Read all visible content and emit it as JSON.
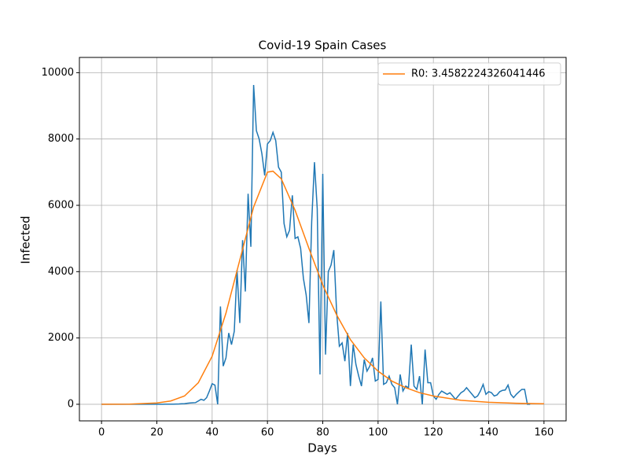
{
  "chart_data": {
    "type": "line",
    "title": "Covid-19 Spain Cases",
    "x_label": "Days",
    "y_label": "Infected",
    "xlim": [
      -8,
      168
    ],
    "ylim": [
      -500,
      10460
    ],
    "xticks": [
      0,
      20,
      40,
      60,
      80,
      100,
      120,
      140,
      160
    ],
    "yticks": [
      0,
      2000,
      4000,
      6000,
      8000,
      10000
    ],
    "grid": true,
    "legend": "upper right",
    "series": [
      {
        "color": "#1f77b4",
        "x": [
          0,
          1,
          2,
          3,
          4,
          5,
          6,
          7,
          8,
          9,
          10,
          11,
          12,
          13,
          14,
          15,
          16,
          17,
          18,
          19,
          20,
          21,
          22,
          23,
          24,
          25,
          26,
          27,
          28,
          29,
          30,
          31,
          32,
          33,
          34,
          35,
          36,
          37,
          38,
          39,
          40,
          41,
          42,
          43,
          44,
          45,
          46,
          47,
          48,
          49,
          50,
          51,
          52,
          53,
          54,
          55,
          56,
          57,
          58,
          59,
          60,
          61,
          62,
          63,
          64,
          65,
          66,
          67,
          68,
          69,
          70,
          71,
          72,
          73,
          74,
          75,
          76,
          77,
          78,
          79,
          80,
          81,
          82,
          83,
          84,
          85,
          86,
          87,
          88,
          89,
          90,
          91,
          92,
          93,
          94,
          95,
          96,
          97,
          98,
          99,
          100,
          101,
          102,
          103,
          104,
          105,
          106,
          107,
          108,
          109,
          110,
          111,
          112,
          113,
          114,
          115,
          116,
          117,
          118,
          119,
          120,
          121,
          122,
          123,
          124,
          125,
          126,
          127,
          128,
          129,
          130,
          131,
          132,
          133,
          134,
          135,
          136,
          137,
          138,
          139,
          140,
          141,
          142,
          143,
          144,
          145,
          146,
          147,
          148,
          149,
          150,
          151,
          152,
          153,
          154,
          155
        ],
        "values": [
          0,
          0,
          0,
          0,
          0,
          0,
          0,
          0,
          0,
          0,
          0,
          0,
          0,
          0,
          0,
          0,
          0,
          0,
          0,
          0,
          1,
          1,
          2,
          3,
          3,
          5,
          5,
          8,
          10,
          15,
          20,
          30,
          40,
          45,
          50,
          100,
          150,
          120,
          200,
          400,
          620,
          580,
          0,
          2950,
          1150,
          1400,
          2150,
          1800,
          2200,
          4050,
          2450,
          4950,
          3400,
          6350,
          4750,
          9630,
          8250,
          8000,
          7550,
          6900,
          7850,
          7950,
          8200,
          7950,
          7150,
          7000,
          5450,
          5050,
          5250,
          6300,
          5000,
          5050,
          4700,
          3800,
          3300,
          2450,
          5500,
          7300,
          5900,
          900,
          6950,
          1500,
          4000,
          4200,
          4650,
          2800,
          1750,
          1850,
          1300,
          2150,
          550,
          1800,
          1200,
          850,
          550,
          1350,
          1000,
          1150,
          1400,
          700,
          750,
          3100,
          600,
          650,
          850,
          600,
          500,
          0,
          900,
          400,
          550,
          500,
          1800,
          550,
          450,
          850,
          0,
          1650,
          650,
          650,
          250,
          150,
          300,
          400,
          350,
          300,
          350,
          250,
          150,
          250,
          350,
          400,
          500,
          400,
          300,
          200,
          250,
          400,
          600,
          300,
          380,
          350,
          250,
          280,
          380,
          420,
          430,
          580,
          300,
          200,
          300,
          380,
          450,
          450,
          0,
          0
        ]
      },
      {
        "name": "R0: 3.4582224326041446",
        "color": "#ff7f0e",
        "x": [
          0,
          10,
          20,
          25,
          30,
          35,
          40,
          45,
          50,
          55,
          60,
          62,
          65,
          70,
          75,
          80,
          85,
          90,
          95,
          100,
          105,
          110,
          115,
          120,
          130,
          140,
          150,
          160
        ],
        "values": [
          0,
          5,
          40,
          100,
          250,
          650,
          1450,
          2750,
          4350,
          5950,
          7000,
          7030,
          6800,
          5850,
          4700,
          3600,
          2700,
          1950,
          1400,
          1000,
          700,
          500,
          350,
          250,
          120,
          60,
          30,
          15
        ]
      }
    ]
  }
}
